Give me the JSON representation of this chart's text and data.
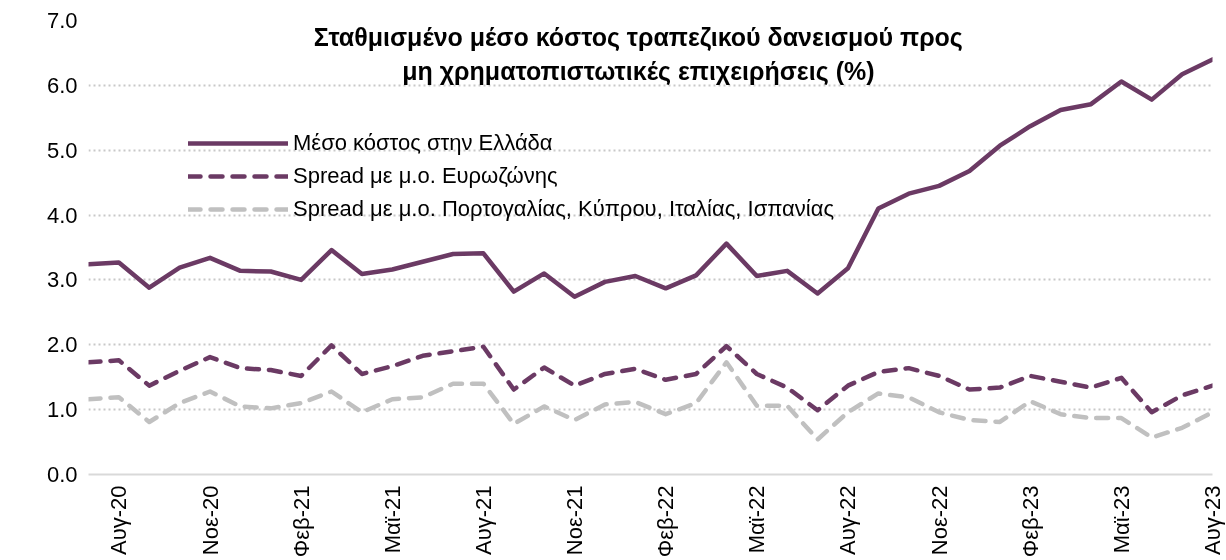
{
  "chart_data": {
    "type": "line",
    "title": "Σταθμισμένο μέσο κόστος τραπεζικού δανεισμού προς μη χρηματοπιστωτικές επιχειρήσεις (%)",
    "categories": [
      null,
      "Αυγ-20",
      null,
      null,
      "Νοε-20",
      null,
      null,
      "Φεβ-21",
      null,
      null,
      "Μαϊ-21",
      null,
      null,
      "Αυγ-21",
      null,
      null,
      "Νοε-21",
      null,
      null,
      "Φεβ-22",
      null,
      null,
      "Μαϊ-22",
      null,
      null,
      "Αυγ-22",
      null,
      null,
      "Νοε-22",
      null,
      null,
      "Φεβ-23",
      null,
      null,
      "Μαϊ-23",
      null,
      null,
      "Αυγ-23"
    ],
    "series": [
      {
        "name": "Μέσο κόστος στην Ελλάδα",
        "color": "#6b3a64",
        "line_style": "solid",
        "values": [
          3.24,
          3.27,
          2.88,
          3.19,
          3.34,
          3.14,
          3.13,
          3.0,
          3.46,
          3.09,
          3.16,
          3.28,
          3.4,
          3.41,
          2.82,
          3.1,
          2.74,
          2.97,
          3.06,
          2.87,
          3.07,
          3.56,
          3.06,
          3.14,
          2.79,
          3.18,
          4.1,
          4.33,
          4.45,
          4.68,
          5.07,
          5.37,
          5.62,
          5.71,
          6.06,
          5.78,
          6.17,
          6.4
        ]
      },
      {
        "name": "Spread με μ.ο. Ευρωζώνης",
        "color": "#6b3a64",
        "line_style": "dashed",
        "values": [
          1.73,
          1.76,
          1.37,
          1.6,
          1.81,
          1.64,
          1.61,
          1.52,
          1.99,
          1.55,
          1.67,
          1.83,
          1.9,
          1.97,
          1.31,
          1.65,
          1.37,
          1.55,
          1.63,
          1.46,
          1.55,
          1.98,
          1.55,
          1.34,
          0.99,
          1.37,
          1.58,
          1.64,
          1.52,
          1.31,
          1.34,
          1.52,
          1.43,
          1.34,
          1.49,
          0.96,
          1.22,
          1.37
        ]
      },
      {
        "name": "Spread με μ.ο. Πορτογαλίας, Κύπρου, Ιταλίας, Ισπανίας",
        "color": "#c0c0c0",
        "line_style": "dashed",
        "values": [
          1.16,
          1.19,
          0.81,
          1.1,
          1.28,
          1.05,
          1.02,
          1.1,
          1.28,
          0.96,
          1.16,
          1.19,
          1.4,
          1.4,
          0.78,
          1.05,
          0.84,
          1.08,
          1.12,
          0.93,
          1.1,
          1.73,
          1.06,
          1.06,
          0.54,
          0.96,
          1.25,
          1.19,
          0.96,
          0.84,
          0.81,
          1.13,
          0.93,
          0.87,
          0.87,
          0.57,
          0.72,
          0.96
        ]
      }
    ],
    "ylim": [
      0,
      7
    ],
    "yticks": [
      {
        "value": 0,
        "label": "0.0"
      },
      {
        "value": 1,
        "label": "1.0"
      },
      {
        "value": 2,
        "label": "2.0"
      },
      {
        "value": 3,
        "label": "3.0"
      },
      {
        "value": 4,
        "label": "4.0"
      },
      {
        "value": 5,
        "label": "5.0"
      },
      {
        "value": 6,
        "label": "6.0"
      },
      {
        "value": 7,
        "label": "7.0"
      }
    ],
    "grid": "y",
    "legend": "top left"
  }
}
